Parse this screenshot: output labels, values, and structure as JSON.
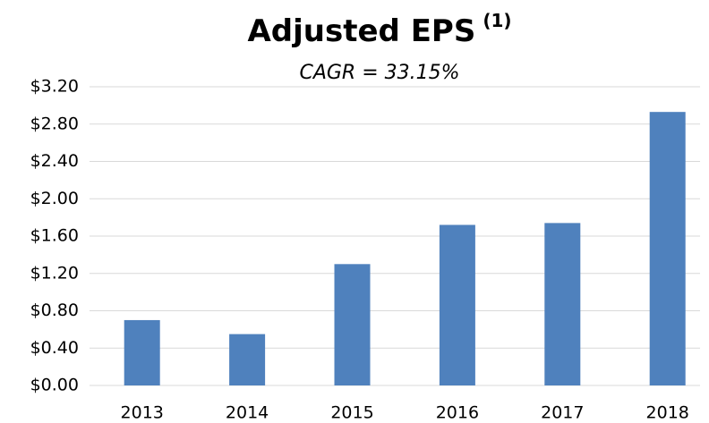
{
  "chart_data": {
    "type": "bar",
    "title": "Adjusted EPS",
    "title_superscript": "(1)",
    "subtitle": "CAGR = 33.15%",
    "categories": [
      "2013",
      "2014",
      "2015",
      "2016",
      "2017",
      "2018"
    ],
    "values": [
      0.7,
      0.55,
      1.3,
      1.72,
      1.74,
      2.93
    ],
    "color": "#4f81bd",
    "ylim": [
      0,
      3.2
    ],
    "yticks": [
      {
        "value": 0,
        "label": "$0.00"
      },
      {
        "value": 0.4,
        "label": "$0.40"
      },
      {
        "value": 0.8,
        "label": "$0.80"
      },
      {
        "value": 1.2,
        "label": "$1.20"
      },
      {
        "value": 1.6,
        "label": "$1.60"
      },
      {
        "value": 2.0,
        "label": "$2.00"
      },
      {
        "value": 2.4,
        "label": "$2.40"
      },
      {
        "value": 2.8,
        "label": "$2.80"
      },
      {
        "value": 3.2,
        "label": "$3.20"
      }
    ],
    "grid": true
  }
}
